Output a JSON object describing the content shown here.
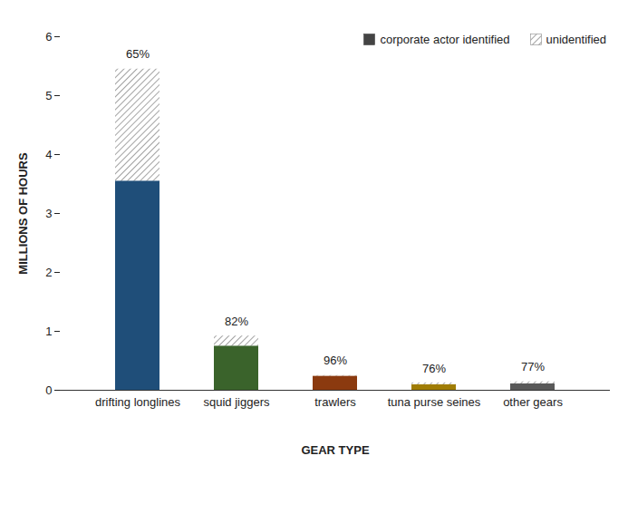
{
  "chart_data": {
    "type": "bar",
    "stacked": true,
    "x_label": "GEAR TYPE",
    "y_label": "MILLIONS OF HOURS",
    "categories": [
      "drifting longlines",
      "squid jiggers",
      "trawlers",
      "tuna purse seines",
      "other gears"
    ],
    "series": [
      {
        "name": "corporate actor identified",
        "color": "#444444",
        "colors": [
          "#1f4e79",
          "#3a632b",
          "#8b3a0f",
          "#a07d05",
          "#595959"
        ],
        "values": [
          3.55,
          0.75,
          0.24,
          0.095,
          0.11
        ]
      },
      {
        "name": "unidentified",
        "color": "#8c8c8c",
        "values": [
          1.9,
          0.17,
          0.01,
          0.03,
          0.033
        ]
      }
    ],
    "shares": [
      65,
      82,
      96,
      76,
      77
    ],
    "share_labels": [
      "65%",
      "82%",
      "96%",
      "76%",
      "77%"
    ],
    "ylim": [
      0,
      6
    ],
    "yticks": [
      0,
      1,
      2,
      3,
      4,
      5,
      6
    ],
    "grid": false,
    "legend": "top-right"
  }
}
